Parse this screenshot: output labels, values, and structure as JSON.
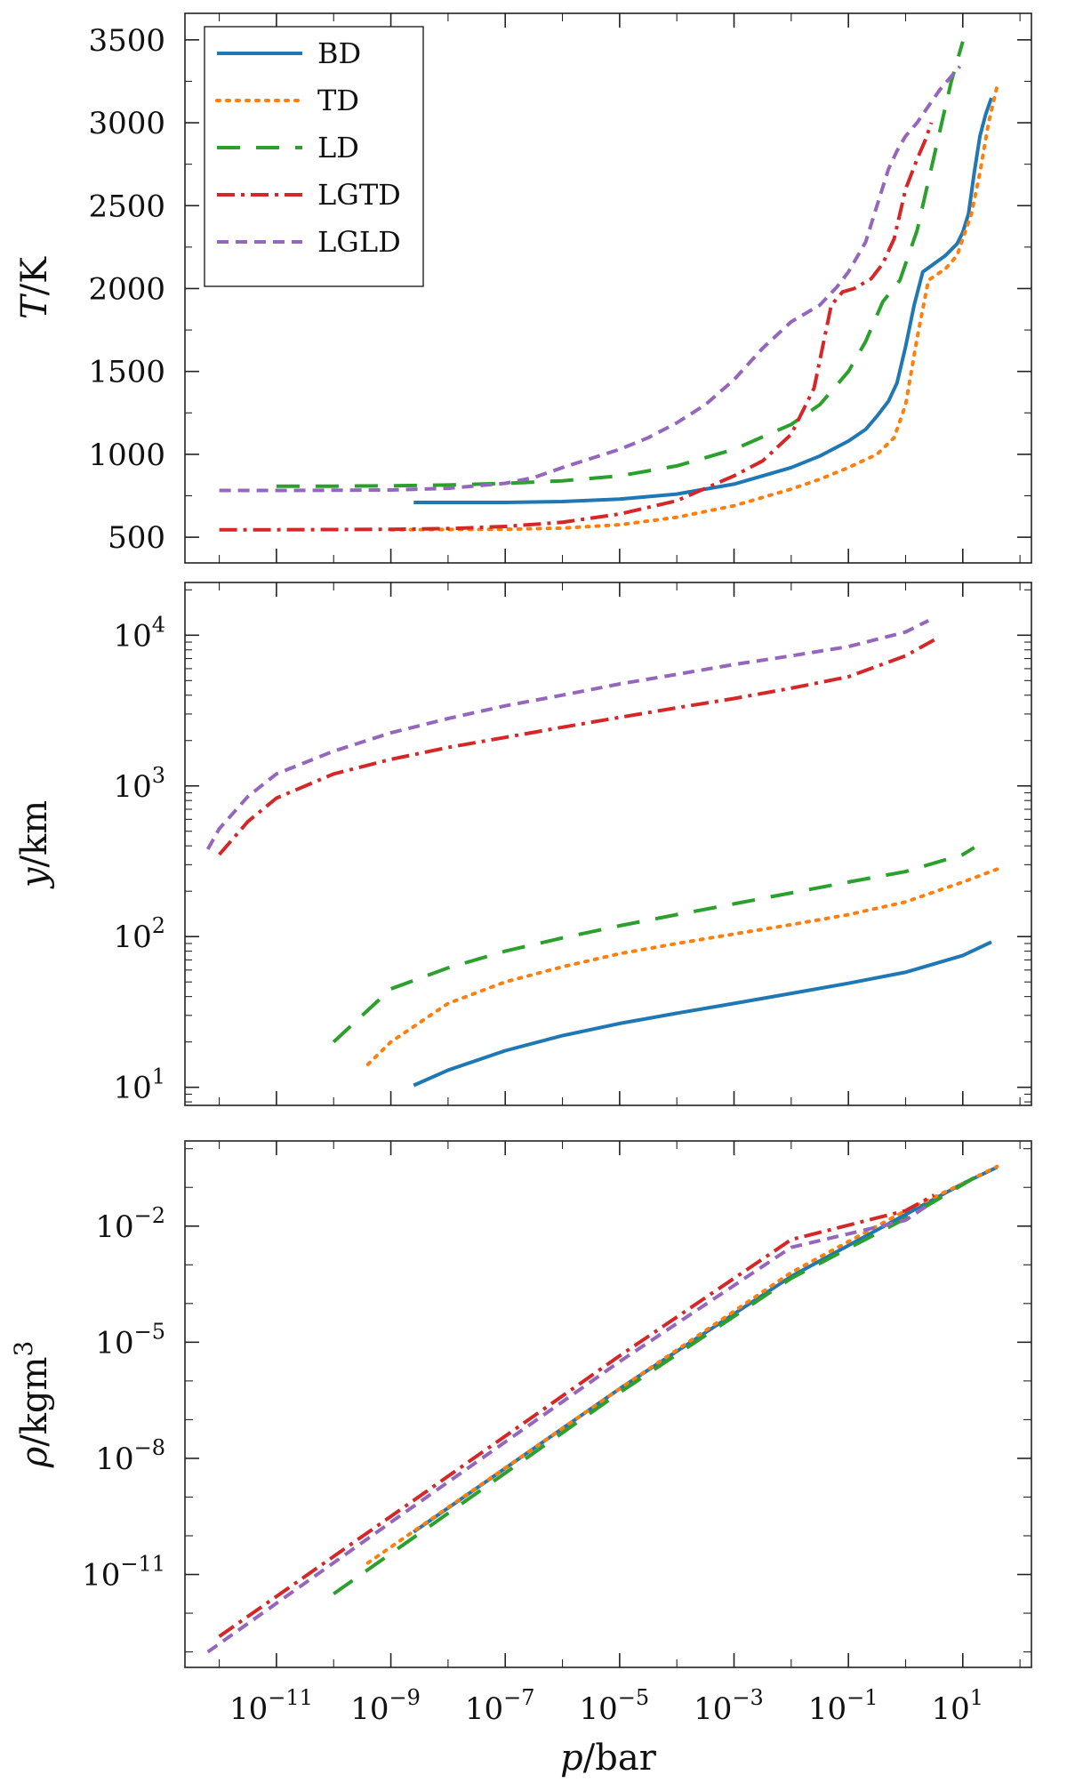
{
  "chart_data": [
    {
      "id": "temperature",
      "type": "line",
      "xscale": "log",
      "yscale": "linear",
      "xlim_exp": [
        -12.6,
        2.2
      ],
      "ylim": [
        345,
        3660
      ],
      "yticks": [
        500,
        1000,
        1500,
        2000,
        2500,
        3000,
        3500
      ],
      "ylabel_italic": "T",
      "ylabel_rest": "/K",
      "legend": {
        "placement": "top-left",
        "entries": [
          "BD",
          "TD",
          "LD",
          "LGTD",
          "LGLD"
        ]
      },
      "series": [
        {
          "name": "BD",
          "x_exp": [
            -8.6,
            -7,
            -6,
            -5,
            -4,
            -3,
            -2,
            -1.5,
            -1,
            -0.7,
            -0.5,
            -0.3,
            -0.15,
            0,
            0.15,
            0.3,
            0.5,
            0.7,
            0.9,
            1.0,
            1.1,
            1.2,
            1.3,
            1.4,
            1.5
          ],
          "y": [
            710,
            710,
            715,
            730,
            760,
            820,
            920,
            990,
            1080,
            1150,
            1230,
            1320,
            1430,
            1650,
            1900,
            2100,
            2150,
            2200,
            2270,
            2340,
            2450,
            2700,
            2920,
            3050,
            3150
          ]
        },
        {
          "name": "TD",
          "x_exp": [
            -9,
            -7,
            -6,
            -5,
            -4,
            -3,
            -2,
            -1.5,
            -1,
            -0.5,
            -0.2,
            0,
            0.2,
            0.4,
            0.7,
            0.9,
            1.0,
            1.15,
            1.3,
            1.45,
            1.6
          ],
          "y": [
            545,
            548,
            555,
            575,
            620,
            690,
            790,
            850,
            920,
            1000,
            1100,
            1300,
            1700,
            2050,
            2120,
            2200,
            2300,
            2450,
            2700,
            3000,
            3220
          ]
        },
        {
          "name": "LD",
          "x_exp": [
            -11,
            -10,
            -9,
            -8,
            -7,
            -6,
            -5,
            -4,
            -3,
            -2,
            -1.5,
            -1,
            -0.7,
            -0.4,
            -0.1,
            0.2,
            0.5,
            0.8,
            1.0
          ],
          "y": [
            808,
            808,
            810,
            815,
            825,
            840,
            870,
            930,
            1030,
            1180,
            1300,
            1500,
            1680,
            1920,
            2050,
            2350,
            2800,
            3250,
            3490
          ]
        },
        {
          "name": "LGTD",
          "x_exp": [
            -12,
            -11,
            -10,
            -9,
            -8,
            -7,
            -6,
            -5,
            -4,
            -3,
            -2.5,
            -2,
            -1.6,
            -1.3,
            -1.1,
            -0.9,
            -0.6,
            -0.4,
            -0.2,
            0,
            0.2,
            0.35,
            0.45
          ],
          "y": [
            545,
            545,
            546,
            548,
            552,
            565,
            590,
            640,
            720,
            870,
            960,
            1120,
            1400,
            1900,
            1980,
            2000,
            2060,
            2150,
            2300,
            2600,
            2780,
            2900,
            3000
          ]
        },
        {
          "name": "LGLD",
          "x_exp": [
            -12,
            -11,
            -10,
            -9,
            -8,
            -7,
            -6.5,
            -6,
            -5,
            -4.5,
            -4,
            -3.5,
            -3,
            -2.5,
            -2,
            -1.5,
            -1.2,
            -1,
            -0.7,
            -0.5,
            -0.3,
            -0.15,
            0,
            0.2,
            0.4,
            0.6,
            0.8,
            0.95
          ],
          "y": [
            782,
            782,
            783,
            785,
            795,
            825,
            860,
            920,
            1030,
            1100,
            1190,
            1300,
            1450,
            1640,
            1800,
            1900,
            2010,
            2100,
            2280,
            2500,
            2720,
            2830,
            2920,
            3000,
            3100,
            3200,
            3280,
            3340
          ]
        }
      ]
    },
    {
      "id": "height",
      "type": "line",
      "xscale": "log",
      "yscale": "log",
      "xlim_exp": [
        -12.6,
        2.2
      ],
      "ylim_exp": [
        0.88,
        4.35
      ],
      "ytick_exp": [
        "1",
        "2",
        "3",
        "4"
      ],
      "ylabel_italic": "y",
      "ylabel_rest": "/km",
      "series": [
        {
          "name": "BD",
          "x_exp": [
            -8.6,
            -8,
            -7,
            -6,
            -5,
            -4,
            -3,
            -2,
            -1,
            0,
            1,
            1.5
          ],
          "y": [
            10.3,
            13,
            17.5,
            22,
            26.5,
            31,
            36,
            42,
            49,
            58,
            75,
            92
          ]
        },
        {
          "name": "TD",
          "x_exp": [
            -9.4,
            -9,
            -8,
            -7,
            -6,
            -5,
            -4,
            -3,
            -2,
            -1,
            0,
            1,
            1.6
          ],
          "y": [
            14.2,
            20,
            36,
            50,
            63,
            77,
            90,
            104,
            120,
            140,
            170,
            230,
            280
          ]
        },
        {
          "name": "LD",
          "x_exp": [
            -10,
            -9.5,
            -9,
            -8,
            -7,
            -6,
            -5,
            -4,
            -3,
            -2,
            -1,
            0,
            1,
            1.2
          ],
          "y": [
            20,
            30,
            45,
            62,
            80,
            98,
            118,
            140,
            165,
            195,
            230,
            270,
            350,
            390
          ]
        },
        {
          "name": "LGTD",
          "x_exp": [
            -12,
            -11.5,
            -11,
            -10,
            -9,
            -8,
            -7,
            -6,
            -5,
            -4,
            -3,
            -2,
            -1,
            0,
            0.5
          ],
          "y": [
            350,
            580,
            830,
            1200,
            1500,
            1800,
            2100,
            2450,
            2850,
            3300,
            3800,
            4450,
            5300,
            7300,
            9300
          ]
        },
        {
          "name": "LGLD",
          "x_exp": [
            -12.2,
            -12,
            -11.5,
            -11,
            -10,
            -9,
            -8,
            -7,
            -6,
            -5,
            -4,
            -3,
            -2,
            -1,
            0,
            0.4
          ],
          "y": [
            380,
            520,
            850,
            1200,
            1700,
            2250,
            2800,
            3400,
            4000,
            4750,
            5500,
            6400,
            7300,
            8400,
            10500,
            12500
          ]
        }
      ]
    },
    {
      "id": "density",
      "type": "line",
      "xscale": "log",
      "yscale": "log",
      "xlim_exp": [
        -12.6,
        2.2
      ],
      "ylim_exp": [
        -13.4,
        0.2
      ],
      "ytick_exp": [
        "−2",
        "−5",
        "−8",
        "−11"
      ],
      "ytick_values": [
        -2,
        -5,
        -8,
        -11
      ],
      "xtick_exp": [
        "−11",
        "−9",
        "−7",
        "−5",
        "−3",
        "−1",
        "1"
      ],
      "xtick_values": [
        -11,
        -9,
        -7,
        -5,
        -3,
        -1,
        1
      ],
      "xlabel_italic": "p",
      "xlabel_rest": "/bar",
      "ylabel_italic": "ρ",
      "ylabel_rest": "/kgm",
      "ylabel_sup": "3",
      "series": [
        {
          "name": "BD",
          "x_exp": [
            -8.6,
            -5,
            -2,
            0,
            1,
            1.6
          ],
          "y_exp": [
            -9.9,
            -6.2,
            -3.3,
            -1.7,
            -0.9,
            -0.48
          ]
        },
        {
          "name": "TD",
          "x_exp": [
            -9.4,
            -5,
            -2,
            0,
            1,
            1.6
          ],
          "y_exp": [
            -10.7,
            -6.2,
            -3.2,
            -1.6,
            -0.9,
            -0.46
          ]
        },
        {
          "name": "LD",
          "x_exp": [
            -10,
            -5,
            -2,
            0,
            1.2
          ],
          "y_exp": [
            -11.5,
            -6.3,
            -3.35,
            -1.8,
            -0.75
          ]
        },
        {
          "name": "LGTD",
          "x_exp": [
            -12,
            -9,
            -5,
            -2,
            0,
            0.5
          ],
          "y_exp": [
            -12.6,
            -9.5,
            -5.35,
            -2.35,
            -1.6,
            -1.2
          ]
        },
        {
          "name": "LGLD",
          "x_exp": [
            -12.2,
            -9,
            -5,
            -2,
            0,
            0.4
          ],
          "y_exp": [
            -13.0,
            -9.65,
            -5.5,
            -2.55,
            -1.85,
            -1.45
          ]
        }
      ]
    }
  ],
  "styles": {
    "BD": {
      "color": "#1f77b4",
      "dash": "none"
    },
    "TD": {
      "color": "#ff7f0e",
      "dash": "3,8"
    },
    "LD": {
      "color": "#2ca02c",
      "dash": "26,18"
    },
    "LGTD": {
      "color": "#d62728",
      "dash": "20,7,4,7"
    },
    "LGLD": {
      "color": "#9467bd",
      "dash": "13,8"
    }
  }
}
